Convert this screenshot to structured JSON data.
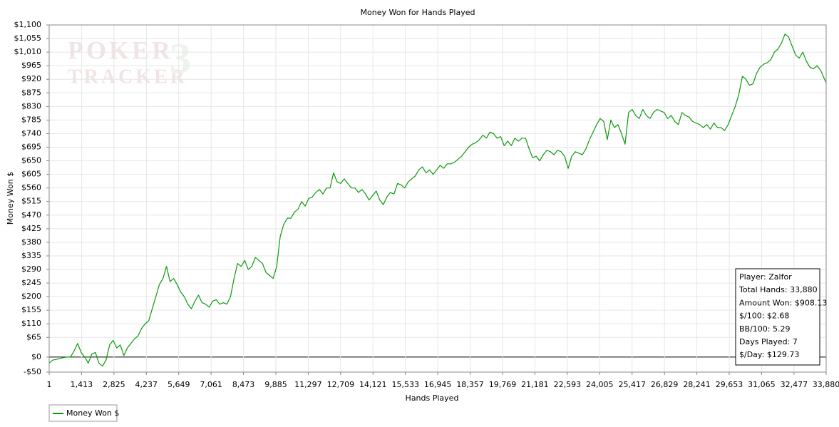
{
  "chart_data": {
    "type": "line",
    "title": "Money Won for Hands Played",
    "x_label": "Hands Played",
    "y_label": "Money Won $",
    "watermark": [
      "POKER",
      "TRACKER",
      "3"
    ],
    "info_box": [
      "Player: Zalfor",
      "Total Hands: 33,880",
      "Amount Won: $908.13",
      "$/100: $2.68",
      "BB/100: 5.29",
      "Days Played: 7",
      "$/Day: $129.73"
    ],
    "grid": true,
    "xlim": [
      1,
      33880
    ],
    "ylim": [
      -50,
      1100
    ],
    "xticks": [
      1,
      {
        "value": 1413,
        "label": "1,413"
      },
      {
        "value": 2825,
        "label": "2,825"
      },
      {
        "value": 4237,
        "label": "4,237"
      },
      {
        "value": 5649,
        "label": "5,649"
      },
      {
        "value": 7061,
        "label": "7,061"
      },
      {
        "value": 8473,
        "label": "8,473"
      },
      {
        "value": 9885,
        "label": "9,885"
      },
      {
        "value": 11297,
        "label": "11,297"
      },
      {
        "value": 12709,
        "label": "12,709"
      },
      {
        "value": 14121,
        "label": "14,121"
      },
      {
        "value": 15533,
        "label": "15,533"
      },
      {
        "value": 16945,
        "label": "16,945"
      },
      {
        "value": 18357,
        "label": "18,357"
      },
      {
        "value": 19769,
        "label": "19,769"
      },
      {
        "value": 21181,
        "label": "21,181"
      },
      {
        "value": 22593,
        "label": "22,593"
      },
      {
        "value": 24005,
        "label": "24,005"
      },
      {
        "value": 25417,
        "label": "25,417"
      },
      {
        "value": 26829,
        "label": "26,829"
      },
      {
        "value": 28241,
        "label": "28,241"
      },
      {
        "value": 29653,
        "label": "29,653"
      },
      {
        "value": 31065,
        "label": "31,065"
      },
      {
        "value": 32477,
        "label": "32,477"
      },
      {
        "value": 33880,
        "label": "33,880"
      }
    ],
    "yticks": [
      {
        "value": -50,
        "label": "-$50"
      },
      {
        "value": 0,
        "label": "$0"
      },
      {
        "value": 65,
        "label": "$65"
      },
      {
        "value": 110,
        "label": "$110"
      },
      {
        "value": 155,
        "label": "$155"
      },
      {
        "value": 200,
        "label": "$200"
      },
      {
        "value": 245,
        "label": "$245"
      },
      {
        "value": 290,
        "label": "$290"
      },
      {
        "value": 335,
        "label": "$335"
      },
      {
        "value": 380,
        "label": "$380"
      },
      {
        "value": 425,
        "label": "$425"
      },
      {
        "value": 470,
        "label": "$470"
      },
      {
        "value": 515,
        "label": "$515"
      },
      {
        "value": 560,
        "label": "$560"
      },
      {
        "value": 605,
        "label": "$605"
      },
      {
        "value": 650,
        "label": "$650"
      },
      {
        "value": 695,
        "label": "$695"
      },
      {
        "value": 740,
        "label": "$740"
      },
      {
        "value": 785,
        "label": "$785"
      },
      {
        "value": 830,
        "label": "$830"
      },
      {
        "value": 875,
        "label": "$875"
      },
      {
        "value": 920,
        "label": "$920"
      },
      {
        "value": 965,
        "label": "$965"
      },
      {
        "value": 1010,
        "label": "$1,010"
      },
      {
        "value": 1055,
        "label": "$1,055"
      },
      {
        "value": 1100,
        "label": "$1,100"
      }
    ],
    "x": [
      1,
      156,
      311,
      466,
      621,
      776,
      931,
      1086,
      1241,
      1396,
      1551,
      1706,
      1861,
      2016,
      2171,
      2326,
      2481,
      2636,
      2791,
      2946,
      3101,
      3256,
      3411,
      3566,
      3721,
      3876,
      4031,
      4186,
      4341,
      4496,
      4651,
      4806,
      4961,
      5116,
      5271,
      5426,
      5581,
      5736,
      5891,
      6046,
      6201,
      6356,
      6511,
      6666,
      6821,
      6976,
      7131,
      7286,
      7441,
      7596,
      7751,
      7906,
      8061,
      8216,
      8371,
      8526,
      8681,
      8836,
      8991,
      9146,
      9301,
      9456,
      9611,
      9766,
      9921,
      10076,
      10231,
      10386,
      10541,
      10696,
      10851,
      11006,
      11161,
      11316,
      11471,
      11626,
      11781,
      11936,
      12091,
      12246,
      12401,
      12556,
      12711,
      12866,
      13021,
      13176,
      13331,
      13486,
      13641,
      13796,
      13951,
      14106,
      14261,
      14416,
      14571,
      14726,
      14881,
      15036,
      15191,
      15346,
      15501,
      15656,
      15811,
      15966,
      16121,
      16276,
      16431,
      16586,
      16741,
      16896,
      17051,
      17206,
      17361,
      17516,
      17671,
      17826,
      17981,
      18136,
      18291,
      18446,
      18601,
      18756,
      18911,
      19066,
      19221,
      19376,
      19531,
      19686,
      19841,
      19996,
      20151,
      20306,
      20461,
      20616,
      20771,
      20926,
      21081,
      21236,
      21391,
      21546,
      21701,
      21856,
      22011,
      22166,
      22321,
      22476,
      22631,
      22786,
      22941,
      23096,
      23251,
      23406,
      23561,
      23716,
      23871,
      24026,
      24181,
      24336,
      24491,
      24646,
      24801,
      24956,
      25111,
      25266,
      25421,
      25576,
      25731,
      25886,
      26041,
      26196,
      26351,
      26506,
      26661,
      26816,
      26971,
      27126,
      27281,
      27436,
      27591,
      27746,
      27901,
      28056,
      28211,
      28366,
      28521,
      28676,
      28831,
      28986,
      29141,
      29296,
      29451,
      29606,
      29761,
      29916,
      30071,
      30226,
      30381,
      30536,
      30691,
      30846,
      31001,
      31156,
      31311,
      31466,
      31621,
      31776,
      31931,
      32086,
      32241,
      32396,
      32551,
      32706,
      32861,
      33016,
      33171,
      33326,
      33481,
      33636,
      33880
    ],
    "series": [
      {
        "name": "Money Won $",
        "color": "#0a9a0a",
        "values": [
          -20,
          -10,
          -8,
          -5,
          -2,
          0,
          0,
          20,
          45,
          15,
          0,
          -20,
          10,
          15,
          -20,
          -30,
          -10,
          40,
          55,
          30,
          40,
          5,
          30,
          45,
          60,
          70,
          95,
          110,
          120,
          160,
          200,
          240,
          260,
          300,
          250,
          260,
          240,
          215,
          200,
          175,
          160,
          185,
          205,
          180,
          175,
          165,
          185,
          190,
          175,
          180,
          175,
          200,
          260,
          310,
          300,
          320,
          290,
          300,
          330,
          320,
          310,
          280,
          270,
          260,
          300,
          400,
          440,
          460,
          460,
          480,
          490,
          515,
          500,
          525,
          530,
          545,
          555,
          540,
          560,
          560,
          610,
          580,
          575,
          590,
          575,
          560,
          560,
          545,
          555,
          540,
          520,
          535,
          550,
          520,
          505,
          530,
          545,
          540,
          575,
          570,
          560,
          580,
          590,
          600,
          620,
          630,
          610,
          620,
          605,
          620,
          635,
          625,
          640,
          640,
          645,
          655,
          665,
          680,
          695,
          705,
          710,
          720,
          735,
          725,
          745,
          740,
          725,
          730,
          700,
          715,
          700,
          725,
          715,
          725,
          725,
          690,
          660,
          665,
          650,
          670,
          685,
          680,
          670,
          685,
          680,
          665,
          625,
          665,
          680,
          675,
          670,
          690,
          720,
          745,
          770,
          790,
          780,
          720,
          785,
          760,
          770,
          740,
          705,
          810,
          820,
          800,
          790,
          820,
          800,
          790,
          810,
          820,
          815,
          810,
          790,
          800,
          780,
          770,
          810,
          800,
          795,
          780,
          775,
          770,
          760,
          770,
          755,
          775,
          760,
          760,
          750,
          770,
          800,
          830,
          870,
          930,
          920,
          900,
          905,
          940,
          960,
          970,
          975,
          985,
          1010,
          1020,
          1040,
          1070,
          1060,
          1030,
          1000,
          990,
          1010,
          980,
          960,
          955,
          965,
          950,
          908
        ]
      }
    ]
  }
}
